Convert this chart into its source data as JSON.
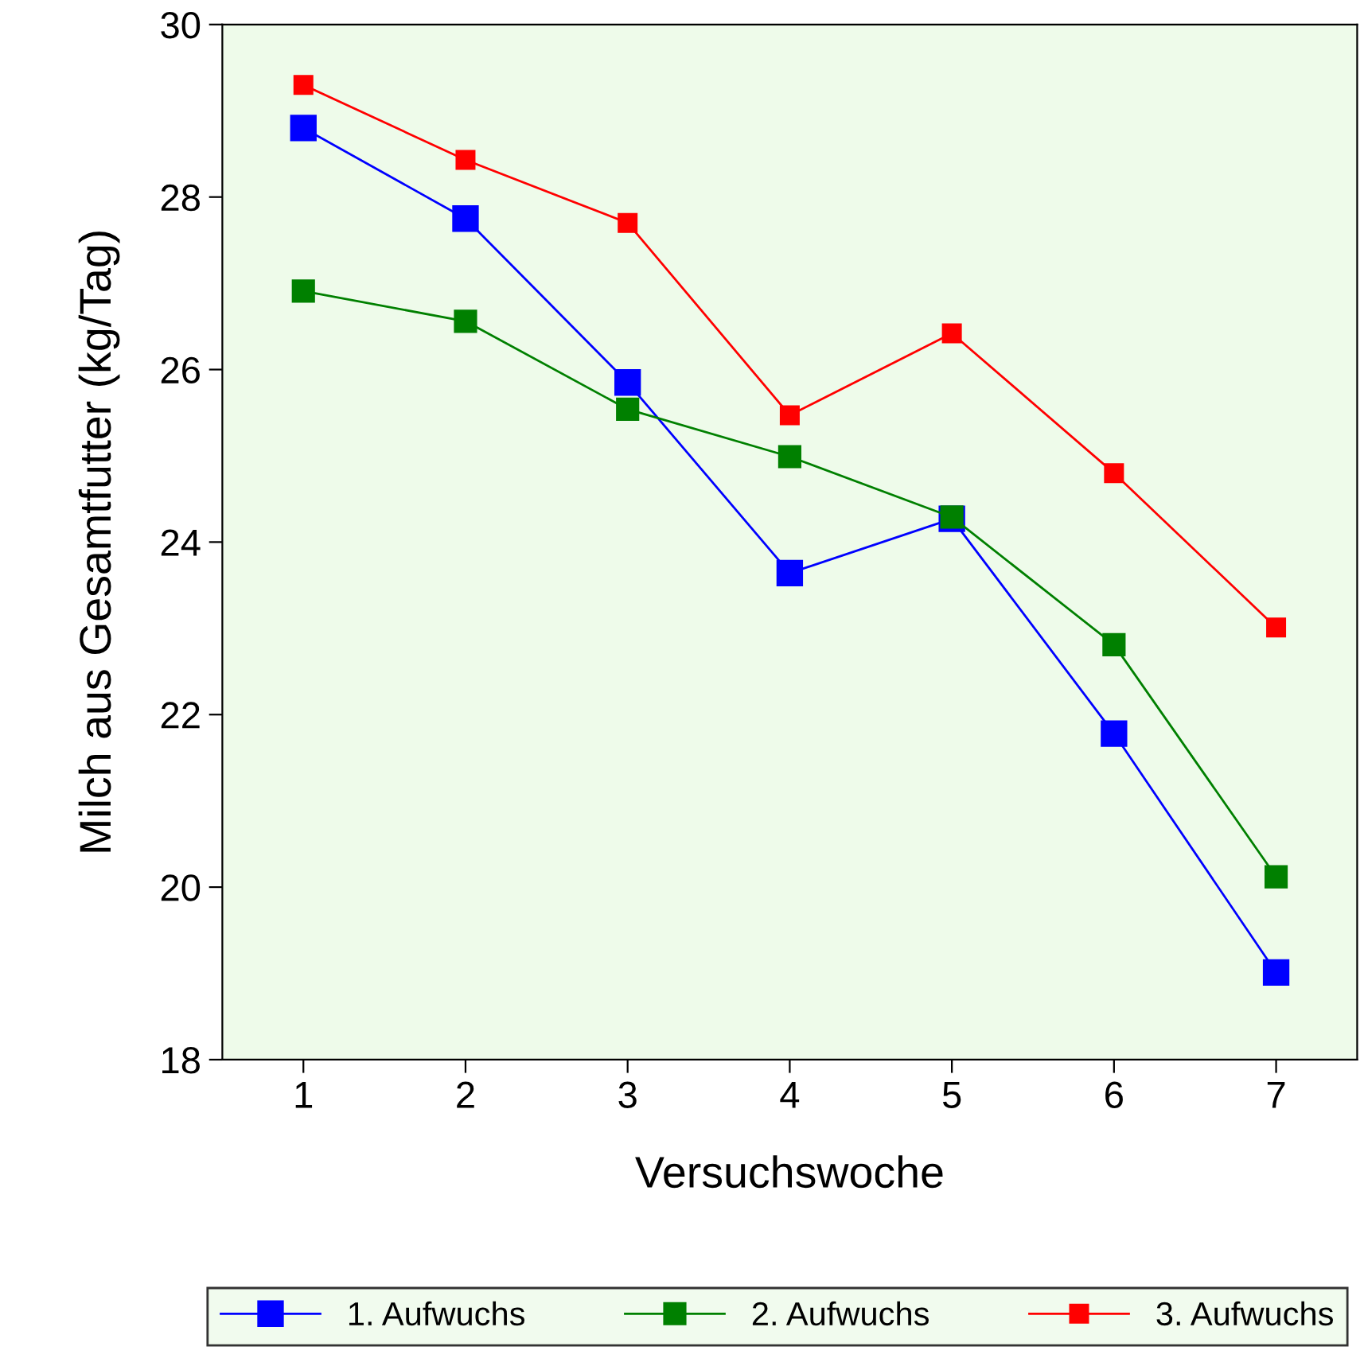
{
  "chart_data": {
    "type": "line",
    "xlabel": "Versuchswoche",
    "ylabel": "Milch aus Gesamtfutter (kg/Tag)",
    "categories": [
      "1",
      "2",
      "3",
      "4",
      "5",
      "6",
      "7"
    ],
    "ylim": [
      18,
      30
    ],
    "yticks": [
      18,
      20,
      22,
      24,
      26,
      28,
      30
    ],
    "grid": false,
    "legend": "bottom",
    "marker": "square",
    "line_style": "solid",
    "series": [
      {
        "name": "1. Aufwuchs",
        "color": "#0000ff",
        "values": [
          28.8,
          27.75,
          25.85,
          23.64,
          24.27,
          21.78,
          19.01
        ]
      },
      {
        "name": "2. Aufwuchs",
        "color": "#008000",
        "values": [
          26.91,
          26.56,
          25.54,
          24.99,
          24.29,
          22.81,
          20.12
        ]
      },
      {
        "name": "3. Aufwuchs",
        "color": "#ff0000",
        "values": [
          29.3,
          28.43,
          27.7,
          25.47,
          26.42,
          24.8,
          23.01
        ]
      }
    ]
  }
}
